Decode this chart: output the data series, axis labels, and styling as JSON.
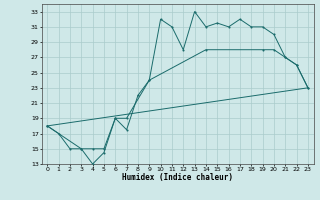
{
  "xlabel": "Humidex (Indice chaleur)",
  "xlim": [
    -0.5,
    23.5
  ],
  "ylim": [
    13,
    34
  ],
  "xticks": [
    0,
    1,
    2,
    3,
    4,
    5,
    6,
    7,
    8,
    9,
    10,
    11,
    12,
    13,
    14,
    15,
    16,
    17,
    18,
    19,
    20,
    21,
    22,
    23
  ],
  "yticks": [
    13,
    15,
    17,
    19,
    21,
    23,
    25,
    27,
    29,
    31,
    33
  ],
  "bg_color": "#cfe8e8",
  "line_color": "#1a6b6b",
  "grid_color": "#aacccc",
  "line1_x": [
    0,
    1,
    2,
    3,
    4,
    5,
    6,
    7,
    8,
    9,
    10,
    11,
    12,
    13,
    14,
    15,
    16,
    17,
    18,
    19,
    20,
    21,
    22,
    23
  ],
  "line1_y": [
    18,
    17,
    15,
    15,
    13,
    14.5,
    19,
    17.5,
    22,
    24,
    32,
    31,
    28,
    33,
    31,
    31.5,
    31,
    32,
    31,
    31,
    30,
    27,
    26,
    23
  ],
  "line2_x": [
    0,
    3,
    4,
    5,
    6,
    7,
    9,
    14,
    19,
    20,
    21,
    22,
    23
  ],
  "line2_y": [
    18,
    15,
    15,
    15,
    19,
    19,
    24,
    28,
    28,
    28,
    27,
    26,
    23
  ],
  "line3_x": [
    0,
    23
  ],
  "line3_y": [
    18,
    23
  ]
}
